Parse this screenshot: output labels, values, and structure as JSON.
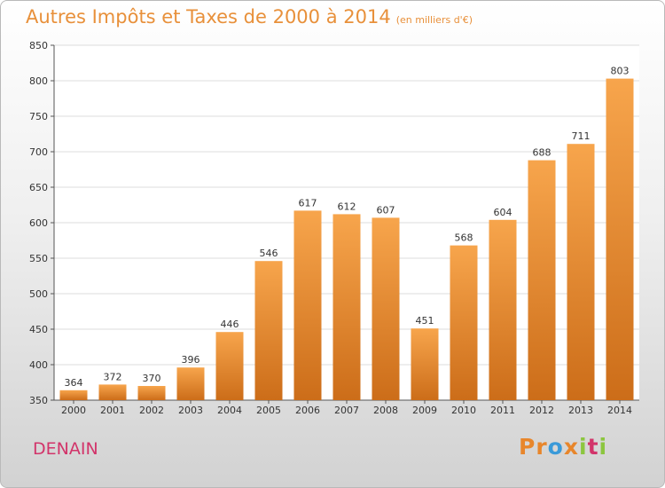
{
  "header": {
    "title": "Autres Impôts et Taxes de 2000 à 2014",
    "unit": "(en milliers d'€)"
  },
  "footer": {
    "city": "DENAIN",
    "logo_text": "Proxiti",
    "logo_colors": [
      "#e8862b",
      "#e8862b",
      "#3a9ad9",
      "#e8862b",
      "#8cc63f",
      "#d2346a",
      "#8cc63f"
    ]
  },
  "colors": {
    "bar_light": "#f7a54c",
    "bar_dark": "#cc6d19",
    "title": "#e8903a",
    "city": "#d2346a"
  },
  "chart_data": {
    "type": "bar",
    "title": "Autres Impôts et Taxes de 2000 à 2014",
    "subtitle": "(en milliers d'€)",
    "xlabel": "",
    "ylabel": "",
    "categories": [
      "2000",
      "2001",
      "2002",
      "2003",
      "2004",
      "2005",
      "2006",
      "2007",
      "2008",
      "2009",
      "2010",
      "2011",
      "2012",
      "2013",
      "2014"
    ],
    "values": [
      364,
      372,
      370,
      396,
      446,
      546,
      617,
      612,
      607,
      451,
      568,
      604,
      688,
      711,
      803
    ],
    "ylim": [
      350,
      850
    ],
    "yticks": [
      350,
      400,
      450,
      500,
      550,
      600,
      650,
      700,
      750,
      800,
      850
    ],
    "grid": true,
    "data_labels": true
  }
}
